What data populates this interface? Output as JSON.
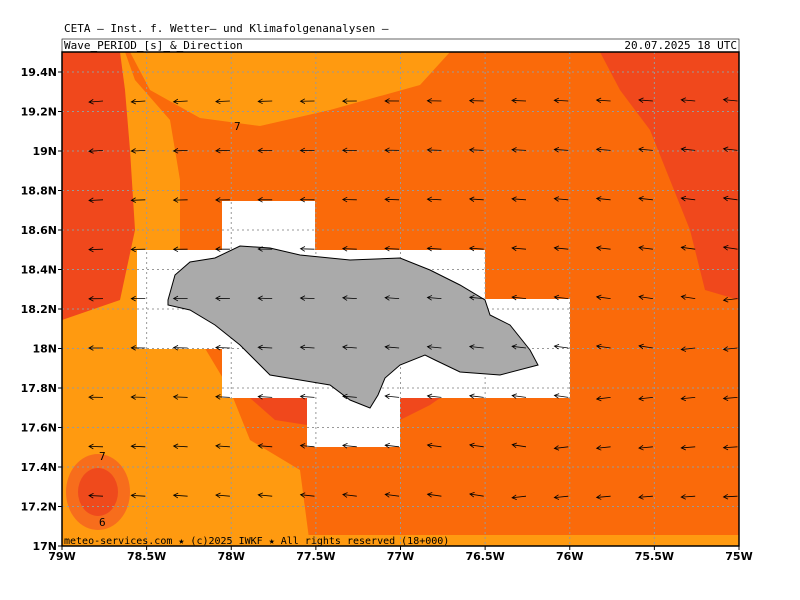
{
  "header": {
    "title": "CETA – Inst. f. Wetter– und Klimafolgenanalysen –",
    "subtitle": "Wave_PERIOD_[s]_&_Direction",
    "datetime": "20.07.2025 18 UTC"
  },
  "map": {
    "lat_labels": [
      "19.4N",
      "19.2N",
      "19N",
      "18.8N",
      "18.6N",
      "18.4N",
      "18.2N",
      "18N",
      "17.8N",
      "17.6N",
      "17.4N",
      "17.2N",
      "17N"
    ],
    "lon_labels": [
      "79W",
      "78.5W",
      "78W",
      "77.5W",
      "77W",
      "76.5W",
      "76W",
      "75.5W",
      "75W"
    ],
    "contour_labels": [
      "7",
      "7",
      "6"
    ],
    "footer": "meteo-services.com ★ (c)2025 IWKF ★ All rights reserved (18+000)"
  }
}
